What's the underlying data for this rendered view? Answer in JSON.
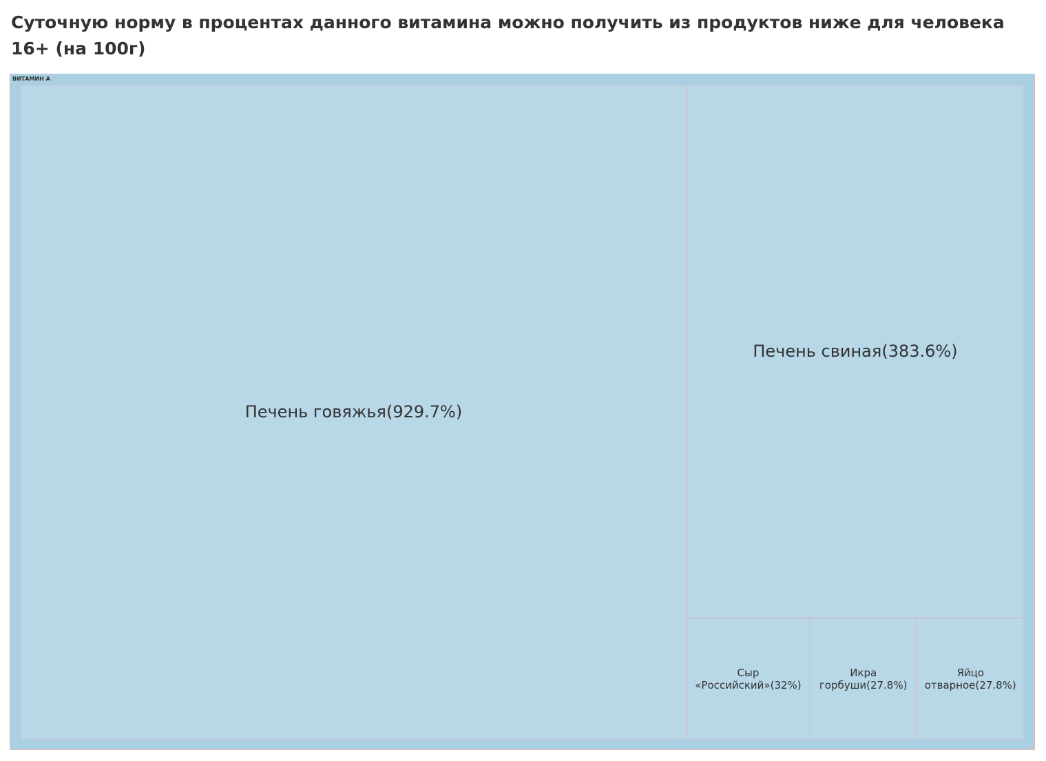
{
  "title": "Суточную норму в процентах данного витамина можно получить из продуктов ниже для человека 16+ (на 100г)",
  "chart_data": {
    "type": "treemap",
    "title": "Суточную норму в процентах данного витамина можно получить из продуктов ниже для человека 16+ (на 100г)",
    "group": "ВИТАМИН А",
    "items": [
      {
        "name": "Печень говяжья",
        "value": 929.7,
        "label": "Печень говяжья(929.7%)"
      },
      {
        "name": "Печень свиная",
        "value": 383.6,
        "label": "Печень свиная(383.6%)"
      },
      {
        "name": "Сыр «Российский»",
        "value": 32,
        "label": "Сыр «Российский»(32%)"
      },
      {
        "name": "Икра горбуши",
        "value": 27.8,
        "label": "Икра горбуши(27.8%)"
      },
      {
        "name": "Яйцо отварное",
        "value": 27.8,
        "label": "Яйцо отварное(27.8%)"
      }
    ],
    "colors": {
      "group_background": "#a9cfe1",
      "tile_fill": "#b8d7e7",
      "tile_border": "#c9c4d4",
      "text": "#333333"
    }
  }
}
